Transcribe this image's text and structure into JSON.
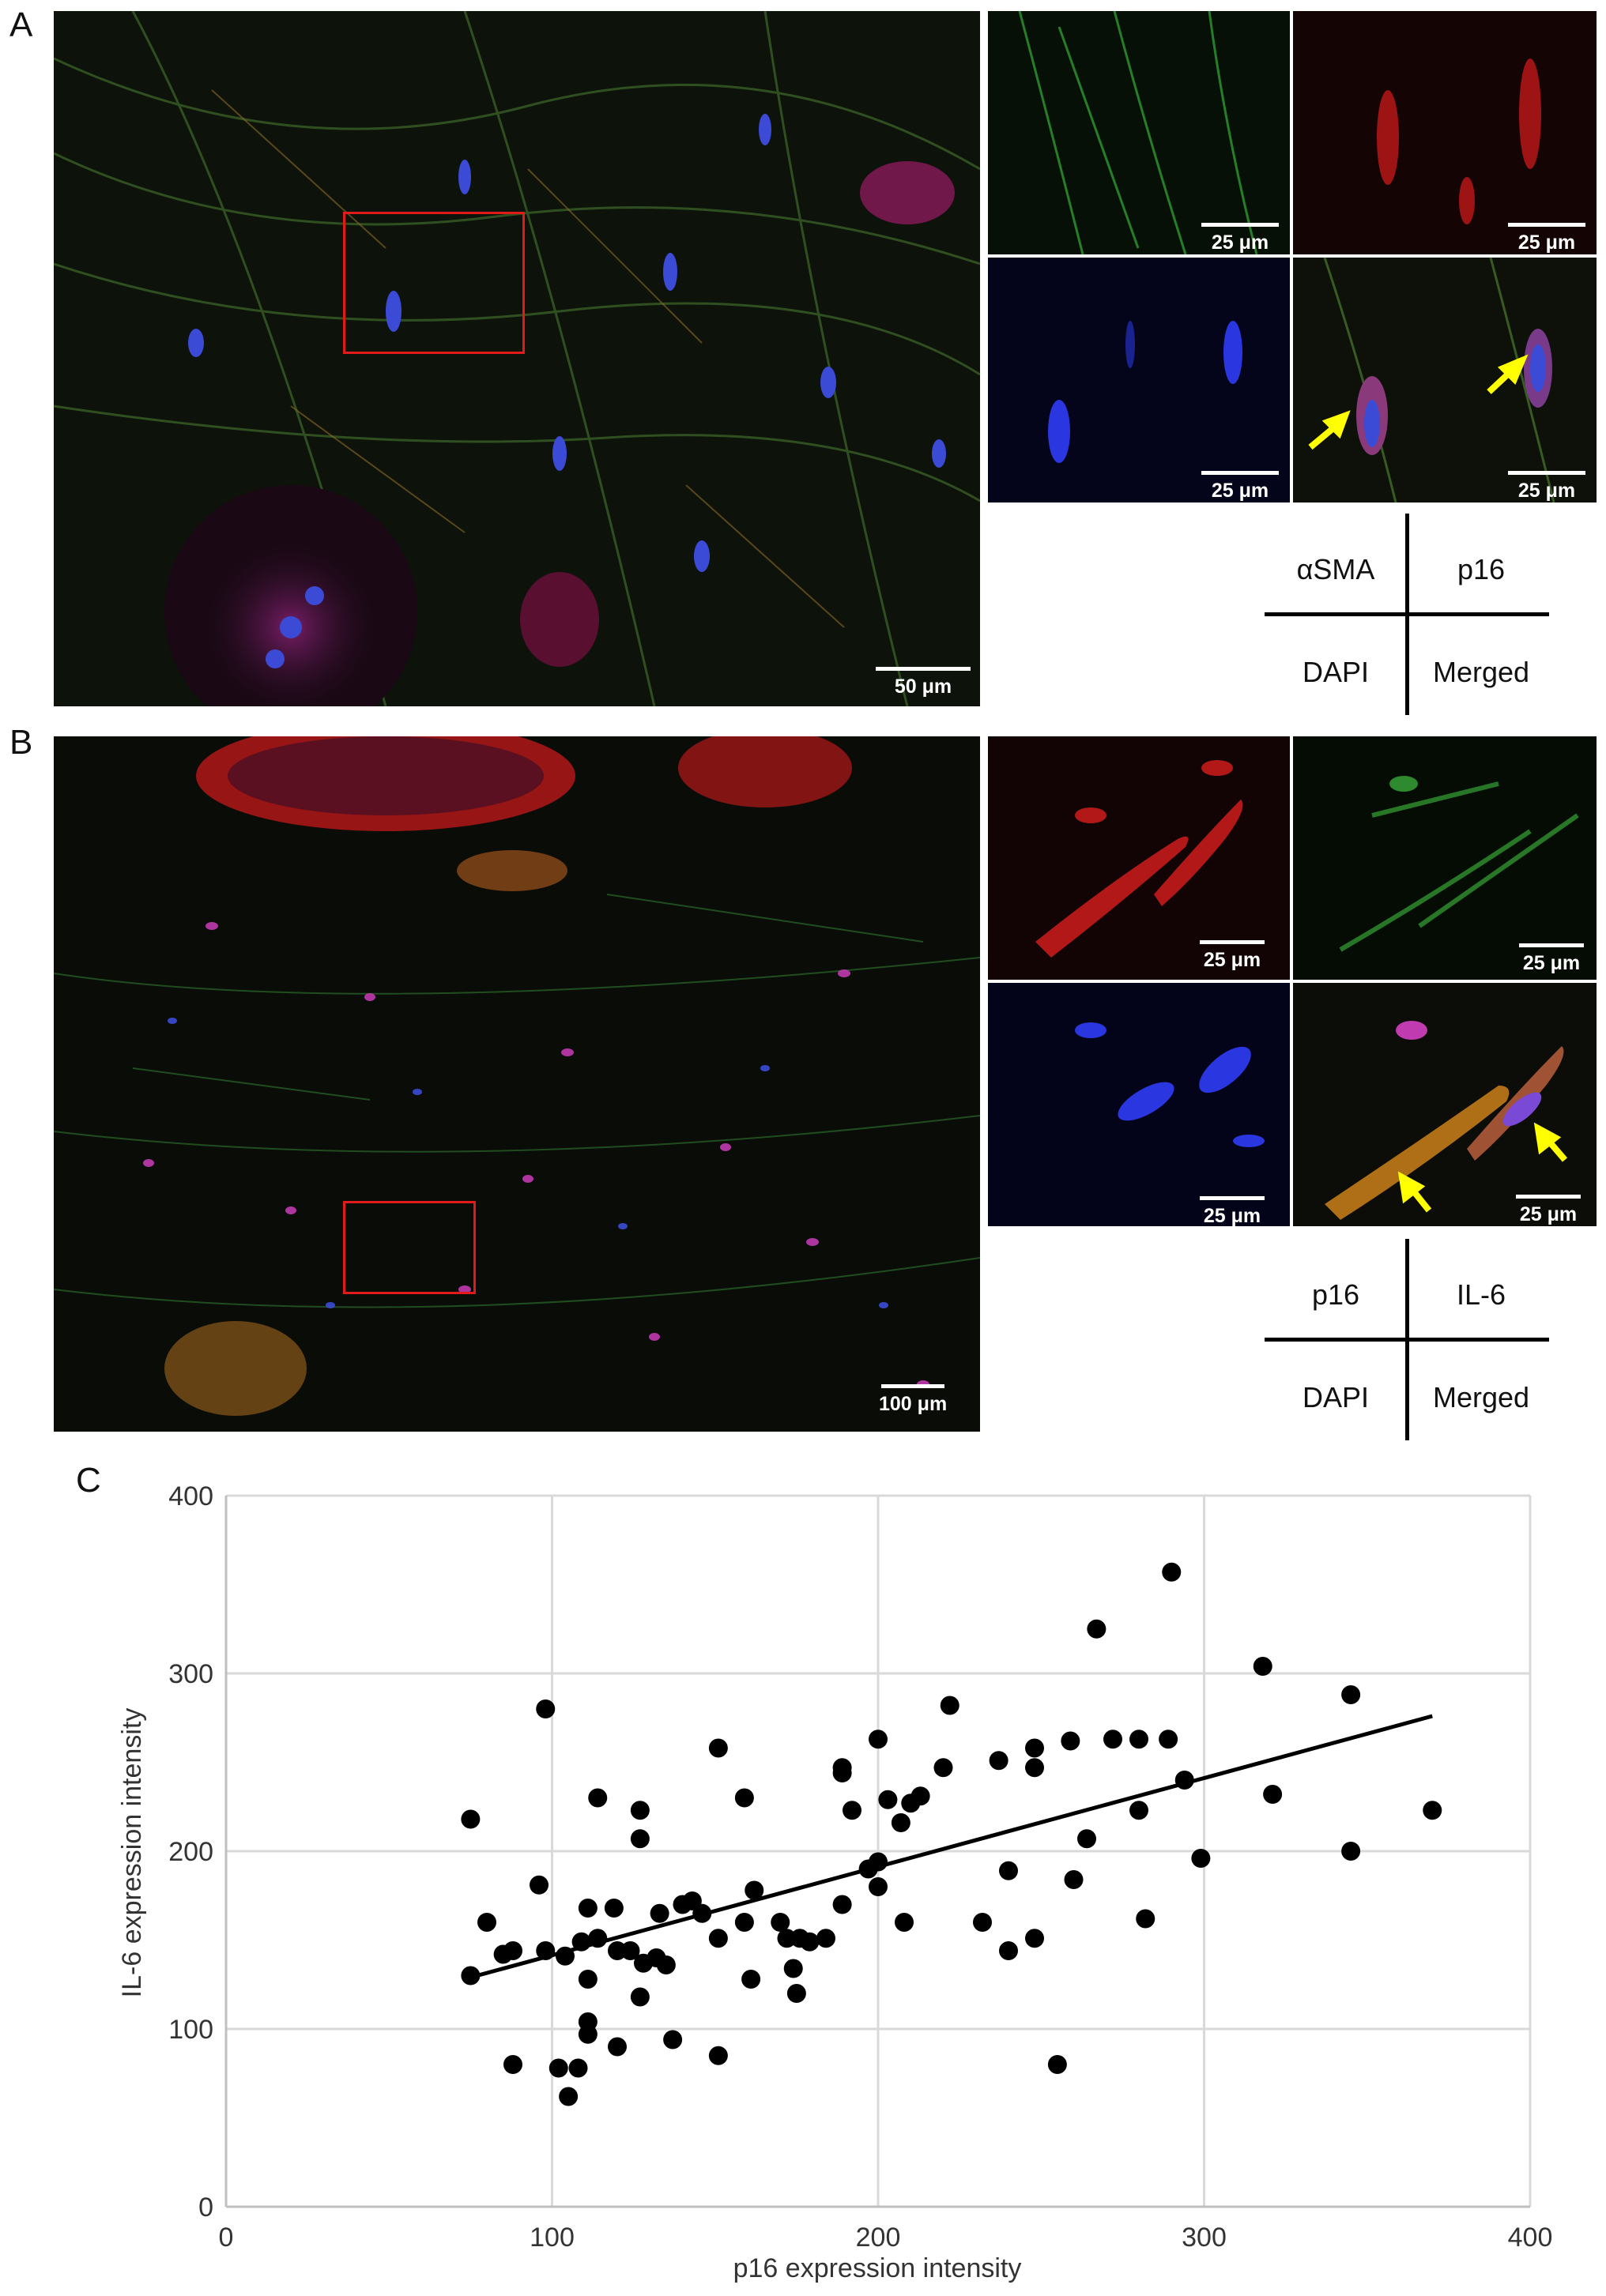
{
  "panels": {
    "A": {
      "letter": "A",
      "overview_scale": "50 μm",
      "insets": [
        {
          "channel": "green",
          "scale": "25 μm"
        },
        {
          "channel": "red",
          "scale": "25 μm"
        },
        {
          "channel": "blue",
          "scale": "25 μm"
        },
        {
          "channel": "merged",
          "scale": "25 μm"
        }
      ],
      "legend": {
        "top_left": "αSMA",
        "top_right": "p16",
        "bottom_left": "DAPI",
        "bottom_right": "Merged"
      }
    },
    "B": {
      "letter": "B",
      "overview_scale": "100 μm",
      "insets": [
        {
          "channel": "red",
          "scale": "25 μm"
        },
        {
          "channel": "green",
          "scale": "25 μm"
        },
        {
          "channel": "blue",
          "scale": "25 μm"
        },
        {
          "channel": "merged",
          "scale": "25 μm"
        }
      ],
      "legend": {
        "top_left": "p16",
        "top_right": "IL-6",
        "bottom_left": "DAPI",
        "bottom_right": "Merged"
      }
    },
    "C": {
      "letter": "C"
    }
  },
  "colors": {
    "roi": "#e21a1a",
    "arrow": "#ffff00",
    "dot": "#000000",
    "grid": "#d9d9d9"
  },
  "chart_data": {
    "type": "scatter",
    "title": "",
    "xlabel": "p16 expression intensity",
    "ylabel": "IL-6 expression intensity",
    "xlim": [
      0,
      400
    ],
    "ylim": [
      0,
      400
    ],
    "xticks": [
      "0",
      "100",
      "200",
      "300",
      "400"
    ],
    "yticks": [
      "0",
      "100",
      "200",
      "300",
      "400"
    ],
    "grid": true,
    "trendline": {
      "x": [
        75,
        370
      ],
      "y": [
        129,
        276
      ]
    },
    "points": [
      [
        75,
        218
      ],
      [
        75,
        130
      ],
      [
        80,
        160
      ],
      [
        85,
        142
      ],
      [
        88,
        144
      ],
      [
        88,
        80
      ],
      [
        96,
        181
      ],
      [
        98,
        280
      ],
      [
        98,
        144
      ],
      [
        102,
        78
      ],
      [
        104,
        141
      ],
      [
        108,
        78
      ],
      [
        109,
        149
      ],
      [
        111,
        168
      ],
      [
        111,
        128
      ],
      [
        111,
        104
      ],
      [
        111,
        97
      ],
      [
        114,
        151
      ],
      [
        114,
        230
      ],
      [
        119,
        168
      ],
      [
        120,
        144
      ],
      [
        120,
        90
      ],
      [
        124,
        144
      ],
      [
        127,
        223
      ],
      [
        127,
        207
      ],
      [
        127,
        118
      ],
      [
        128,
        137
      ],
      [
        132,
        140
      ],
      [
        133,
        165
      ],
      [
        135,
        136
      ],
      [
        137,
        94
      ],
      [
        140,
        170
      ],
      [
        143,
        172
      ],
      [
        146,
        165
      ],
      [
        151,
        258
      ],
      [
        151,
        151
      ],
      [
        151,
        85
      ],
      [
        159,
        230
      ],
      [
        159,
        160
      ],
      [
        161,
        128
      ],
      [
        162,
        178
      ],
      [
        170,
        160
      ],
      [
        172,
        151
      ],
      [
        174,
        134
      ],
      [
        175,
        120
      ],
      [
        176,
        151
      ],
      [
        179,
        149
      ],
      [
        184,
        151
      ],
      [
        189,
        247
      ],
      [
        189,
        244
      ],
      [
        189,
        170
      ],
      [
        192,
        223
      ],
      [
        197,
        190
      ],
      [
        200,
        263
      ],
      [
        200,
        194
      ],
      [
        200,
        180
      ],
      [
        203,
        229
      ],
      [
        207,
        216
      ],
      [
        208,
        160
      ],
      [
        210,
        227
      ],
      [
        213,
        231
      ],
      [
        220,
        247
      ],
      [
        222,
        282
      ],
      [
        232,
        160
      ],
      [
        237,
        251
      ],
      [
        240,
        189
      ],
      [
        240,
        144
      ],
      [
        248,
        258
      ],
      [
        248,
        247
      ],
      [
        248,
        151
      ],
      [
        255,
        80
      ],
      [
        259,
        262
      ],
      [
        260,
        184
      ],
      [
        264,
        207
      ],
      [
        267,
        325
      ],
      [
        272,
        263
      ],
      [
        280,
        263
      ],
      [
        280,
        223
      ],
      [
        282,
        162
      ],
      [
        289,
        263
      ],
      [
        290,
        357
      ],
      [
        294,
        240
      ],
      [
        299,
        196
      ],
      [
        318,
        304
      ],
      [
        321,
        232
      ],
      [
        345,
        288
      ],
      [
        345,
        200
      ],
      [
        370,
        223
      ],
      [
        105,
        62
      ]
    ]
  }
}
